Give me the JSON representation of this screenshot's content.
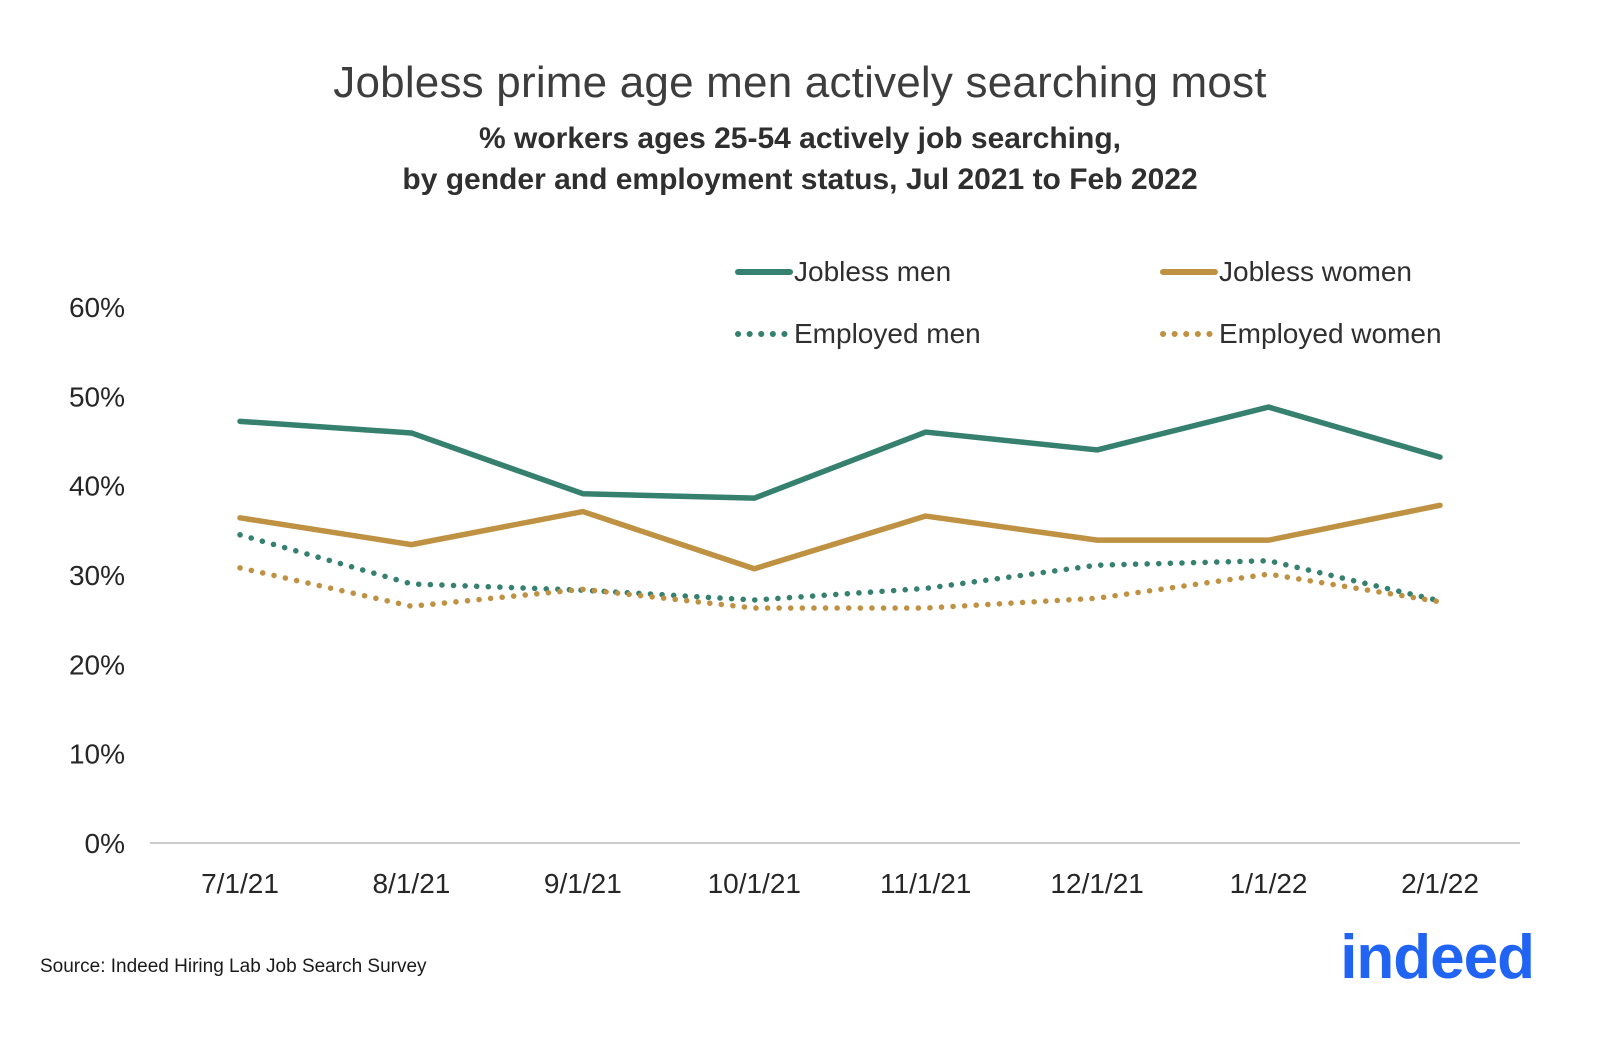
{
  "header": {
    "title": "Jobless prime age men actively searching most",
    "subtitle_line1": "% workers ages 25-54 actively job searching,",
    "subtitle_line2": "by gender and employment status, Jul 2021 to Feb 2022"
  },
  "chart_data": {
    "type": "line",
    "title": "Jobless prime age men actively searching most",
    "subtitle": "% workers ages 25-54 actively job searching, by gender and employment status, Jul 2021 to Feb 2022",
    "categories": [
      "7/1/21",
      "8/1/21",
      "9/1/21",
      "10/1/21",
      "11/1/21",
      "12/1/21",
      "1/1/22",
      "2/1/22"
    ],
    "series": [
      {
        "name": "Jobless men",
        "style": "solid",
        "color": "#35806f",
        "values": [
          47.2,
          45.9,
          39.1,
          38.6,
          46.0,
          44.0,
          48.8,
          43.2
        ]
      },
      {
        "name": "Jobless women",
        "style": "solid",
        "color": "#bf9143",
        "values": [
          36.4,
          33.4,
          37.1,
          30.7,
          36.6,
          33.9,
          33.9,
          37.8
        ]
      },
      {
        "name": "Employed men",
        "style": "dotted",
        "color": "#35806f",
        "values": [
          34.5,
          29.0,
          28.3,
          27.2,
          28.5,
          31.1,
          31.6,
          27.1
        ]
      },
      {
        "name": "Employed women",
        "style": "dotted",
        "color": "#bf9143",
        "values": [
          30.8,
          26.5,
          28.4,
          26.3,
          26.3,
          27.4,
          30.1,
          27.0
        ]
      }
    ],
    "xlabel": "",
    "ylabel": "",
    "ylim": [
      0,
      60
    ],
    "yticks": [
      "0%",
      "10%",
      "20%",
      "30%",
      "40%",
      "50%",
      "60%"
    ],
    "grid": false,
    "legend_position": "top-right-two-columns"
  },
  "footer": {
    "source": "Source: Indeed Hiring Lab Job Search Survey",
    "logo_text": "indeed",
    "logo_color": "#2164f3"
  }
}
